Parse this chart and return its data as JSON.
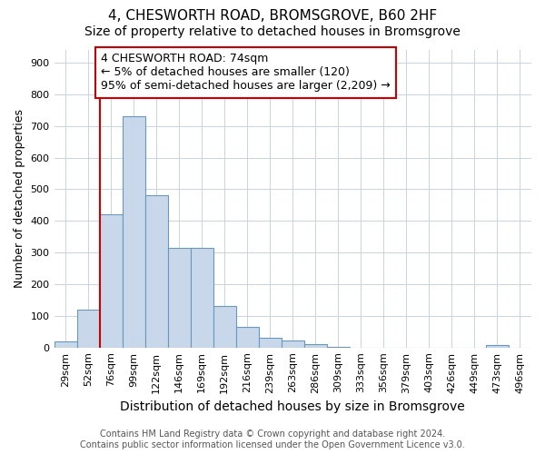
{
  "title": "4, CHESWORTH ROAD, BROMSGROVE, B60 2HF",
  "subtitle": "Size of property relative to detached houses in Bromsgrove",
  "xlabel": "Distribution of detached houses by size in Bromsgrove",
  "ylabel": "Number of detached properties",
  "bar_labels": [
    "29sqm",
    "52sqm",
    "76sqm",
    "99sqm",
    "122sqm",
    "146sqm",
    "169sqm",
    "192sqm",
    "216sqm",
    "239sqm",
    "263sqm",
    "286sqm",
    "309sqm",
    "333sqm",
    "356sqm",
    "379sqm",
    "403sqm",
    "426sqm",
    "449sqm",
    "473sqm",
    "496sqm"
  ],
  "bar_values": [
    20,
    120,
    420,
    730,
    480,
    315,
    315,
    130,
    65,
    30,
    22,
    10,
    2,
    0,
    0,
    0,
    0,
    0,
    0,
    8,
    0
  ],
  "bar_color": "#c8d8ea",
  "bar_edge_color": "#6898c0",
  "vline_x_index": 2,
  "vline_color": "#cc0000",
  "annotation_text": "4 CHESWORTH ROAD: 74sqm\n← 5% of detached houses are smaller (120)\n95% of semi-detached houses are larger (2,209) →",
  "annotation_box_color": "#ffffff",
  "annotation_box_edge_color": "#cc0000",
  "ylim": [
    0,
    940
  ],
  "yticks": [
    0,
    100,
    200,
    300,
    400,
    500,
    600,
    700,
    800,
    900
  ],
  "footer_line1": "Contains HM Land Registry data © Crown copyright and database right 2024.",
  "footer_line2": "Contains public sector information licensed under the Open Government Licence v3.0.",
  "background_color": "#ffffff",
  "grid_color": "#c8d4e0",
  "title_fontsize": 11,
  "subtitle_fontsize": 10,
  "xlabel_fontsize": 10,
  "ylabel_fontsize": 9,
  "tick_fontsize": 8,
  "footer_fontsize": 7,
  "annotation_fontsize": 9
}
